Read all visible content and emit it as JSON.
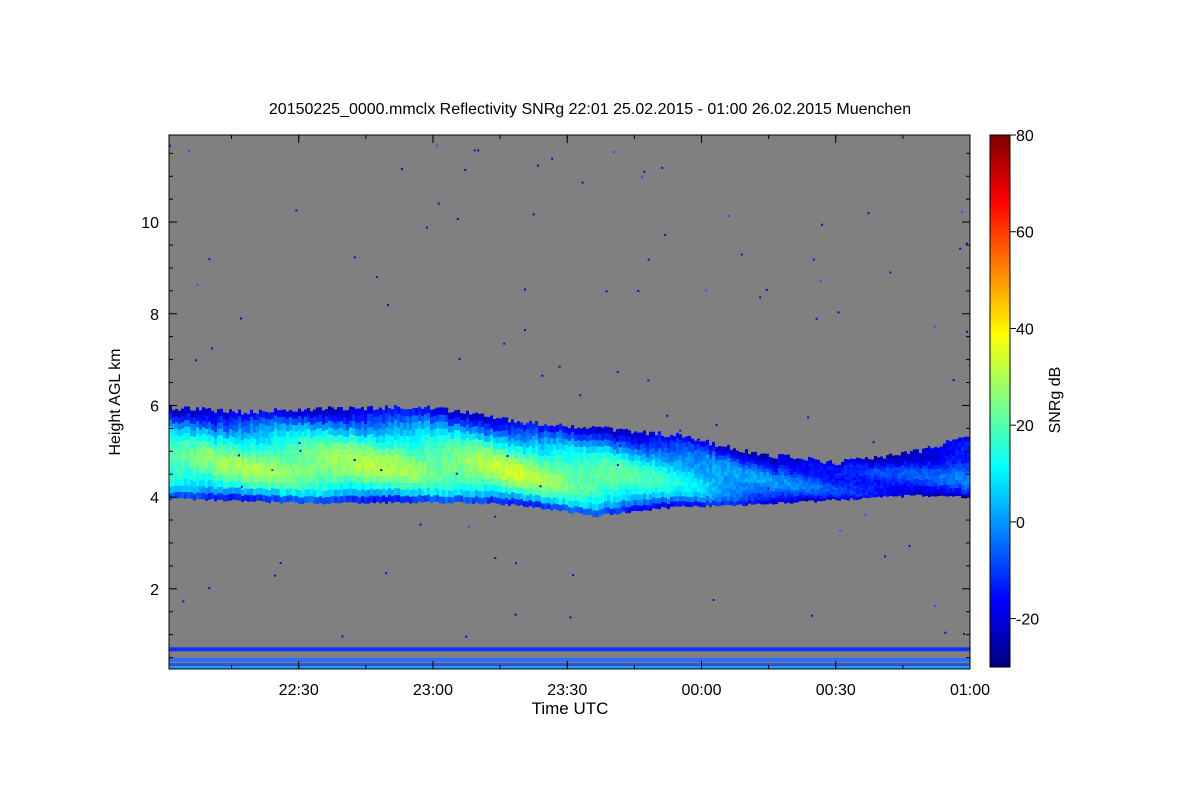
{
  "chart_data": {
    "type": "heatmap",
    "title": "20150225_0000.mmclx Reflectivity SNRg   22:01 25.02.2015 - 01:00 26.02.2015 Muenchen",
    "xlabel": "Time UTC",
    "ylabel": "Height AGL km",
    "colorbar_label": "SNRg dB",
    "x_tick_labels": [
      "22:30",
      "23:00",
      "23:30",
      "00:00",
      "00:30",
      "01:00"
    ],
    "x_tick_hours": [
      22.5,
      23.0,
      23.5,
      24.0,
      24.5,
      25.0
    ],
    "xlim_hours": [
      22.017,
      25.0
    ],
    "y_ticks": [
      2,
      4,
      6,
      8,
      10
    ],
    "ylim": [
      0.25,
      11.9
    ],
    "colorbar_ticks": [
      -20,
      0,
      20,
      40,
      60,
      80
    ],
    "clim": [
      -30,
      80
    ],
    "background_color": "#808080",
    "cloud_layer": {
      "x_hours": [
        22.02,
        22.3,
        22.6,
        23.0,
        23.3,
        23.6,
        23.9,
        24.2,
        24.5,
        24.8,
        25.0
      ],
      "base_km": [
        3.97,
        3.92,
        3.87,
        3.9,
        3.85,
        3.6,
        3.8,
        3.85,
        3.95,
        4.05,
        4.0
      ],
      "top_km": [
        5.95,
        5.85,
        5.95,
        5.95,
        5.65,
        5.5,
        5.35,
        4.95,
        4.75,
        5.0,
        5.35
      ],
      "peak_snr_db": [
        22,
        26,
        28,
        26,
        30,
        24,
        12,
        0,
        -10,
        -10,
        -5
      ]
    },
    "near_surface_bands_km": [
      0.68,
      0.45,
      0.3
    ]
  }
}
